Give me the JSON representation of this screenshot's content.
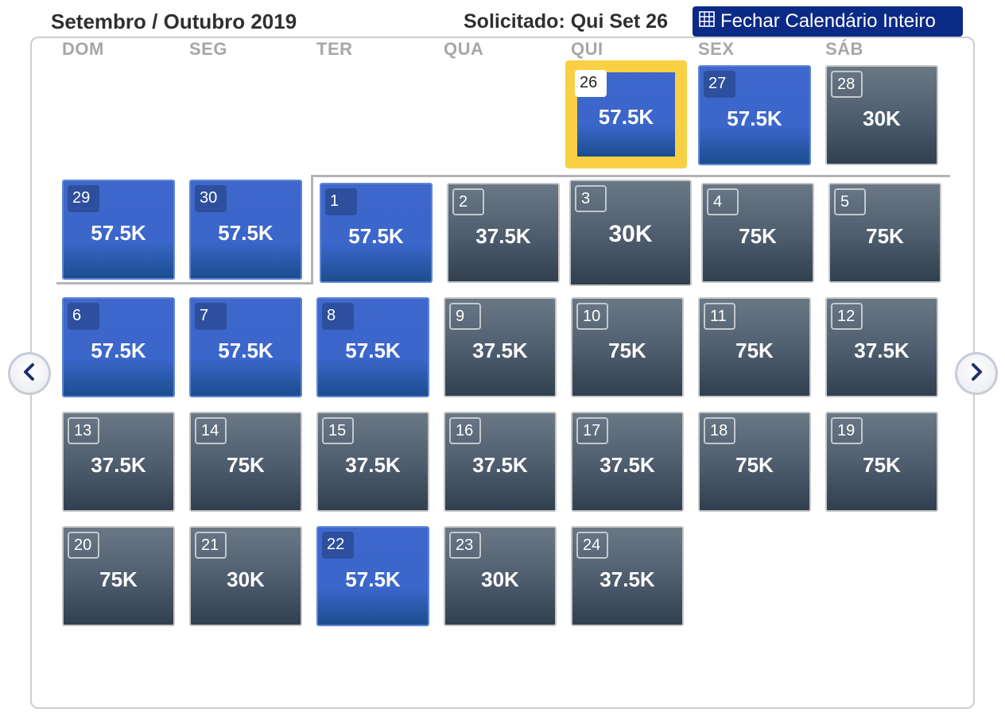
{
  "header": {
    "title": "Setembro / Outubro 2019",
    "requested": "Solicitado: Qui Set 26",
    "close_button": "Fechar Calendário Inteiro"
  },
  "weekdays": [
    "DOM",
    "SEG",
    "TER",
    "QUA",
    "QUI",
    "SEX",
    "SÁB"
  ],
  "days": [
    {
      "day": "26",
      "price": "57.5K",
      "style": "selected"
    },
    {
      "day": "27",
      "price": "57.5K",
      "style": "blue"
    },
    {
      "day": "28",
      "price": "30K",
      "style": "gray"
    },
    {
      "day": "29",
      "price": "57.5K",
      "style": "blue"
    },
    {
      "day": "30",
      "price": "57.5K",
      "style": "blue"
    },
    {
      "day": "1",
      "price": "57.5K",
      "style": "blue"
    },
    {
      "day": "2",
      "price": "37.5K",
      "style": "gray"
    },
    {
      "day": "3",
      "price": "30K",
      "style": "gray"
    },
    {
      "day": "4",
      "price": "75K",
      "style": "gray"
    },
    {
      "day": "5",
      "price": "75K",
      "style": "gray"
    },
    {
      "day": "6",
      "price": "57.5K",
      "style": "blue"
    },
    {
      "day": "7",
      "price": "57.5K",
      "style": "blue"
    },
    {
      "day": "8",
      "price": "57.5K",
      "style": "blue"
    },
    {
      "day": "9",
      "price": "37.5K",
      "style": "gray"
    },
    {
      "day": "10",
      "price": "75K",
      "style": "gray"
    },
    {
      "day": "11",
      "price": "75K",
      "style": "gray"
    },
    {
      "day": "12",
      "price": "37.5K",
      "style": "gray"
    },
    {
      "day": "13",
      "price": "37.5K",
      "style": "gray"
    },
    {
      "day": "14",
      "price": "75K",
      "style": "gray"
    },
    {
      "day": "15",
      "price": "37.5K",
      "style": "gray"
    },
    {
      "day": "16",
      "price": "37.5K",
      "style": "gray"
    },
    {
      "day": "17",
      "price": "37.5K",
      "style": "gray"
    },
    {
      "day": "18",
      "price": "75K",
      "style": "gray"
    },
    {
      "day": "19",
      "price": "75K",
      "style": "gray"
    },
    {
      "day": "20",
      "price": "75K",
      "style": "gray"
    },
    {
      "day": "21",
      "price": "30K",
      "style": "gray"
    },
    {
      "day": "22",
      "price": "57.5K",
      "style": "blue"
    },
    {
      "day": "23",
      "price": "30K",
      "style": "gray"
    },
    {
      "day": "24",
      "price": "37.5K",
      "style": "gray"
    }
  ],
  "icons": {
    "close_button_icon": "grid-icon",
    "prev": "chevron-left-icon",
    "next": "chevron-right-icon"
  },
  "colors": {
    "selected_border": "#f9d043",
    "blue_tile": "#3b66ca",
    "gray_tile": "#4d5c6c",
    "close_button_bg": "#0b2a86"
  }
}
